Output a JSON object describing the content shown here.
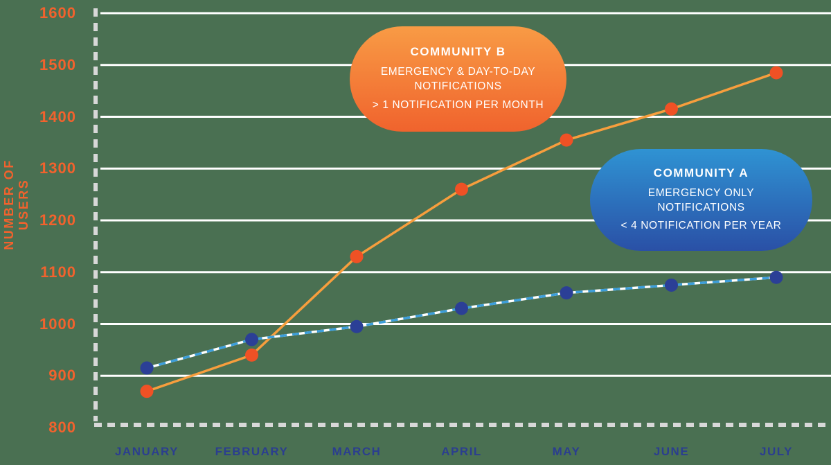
{
  "background_color": "#4A7052",
  "colors": {
    "axis_label_orange": "#F2622D",
    "month_label_blue": "#2B3E8F",
    "gridline_white": "#FFFFFF",
    "dashed_axis_gray": "#D8D8D8",
    "community_b_line": "#F79E3D",
    "community_b_dot": "#EF5125",
    "community_a_line": "#3C9EDA",
    "community_a_dot": "#2B3F96",
    "bubble_b_gradient_top": "#F89B45",
    "bubble_b_gradient_bottom": "#F0632D",
    "bubble_a_gradient_top": "#2F93D3",
    "bubble_a_gradient_bottom": "#2A50A6"
  },
  "chart_data": {
    "type": "line",
    "title": "",
    "xlabel": "",
    "ylabel": "NUMBER OF USERS",
    "categories": [
      "JANUARY",
      "FEBRUARY",
      "MARCH",
      "APRIL",
      "MAY",
      "JUNE",
      "JULY"
    ],
    "y_ticks": [
      800,
      900,
      1000,
      1100,
      1200,
      1300,
      1400,
      1500,
      1600
    ],
    "ylim": [
      800,
      1600
    ],
    "grid": true,
    "legend_position": "callout-bubbles",
    "series": [
      {
        "name": "Community B",
        "values": [
          870,
          940,
          1130,
          1260,
          1355,
          1415,
          1485
        ],
        "line_style": "solid"
      },
      {
        "name": "Community A",
        "values": [
          915,
          970,
          995,
          1030,
          1060,
          1075,
          1090
        ],
        "line_style": "dashed"
      }
    ]
  },
  "callouts": {
    "community_b": {
      "title": "COMMUNITY B",
      "line1": "EMERGENCY & DAY-TO-DAY NOTIFICATIONS",
      "line2": "> 1 NOTIFICATION PER MONTH"
    },
    "community_a": {
      "title": "COMMUNITY A",
      "line1": "EMERGENCY ONLY NOTIFICATIONS",
      "line2": "< 4 NOTIFICATION PER YEAR"
    }
  }
}
